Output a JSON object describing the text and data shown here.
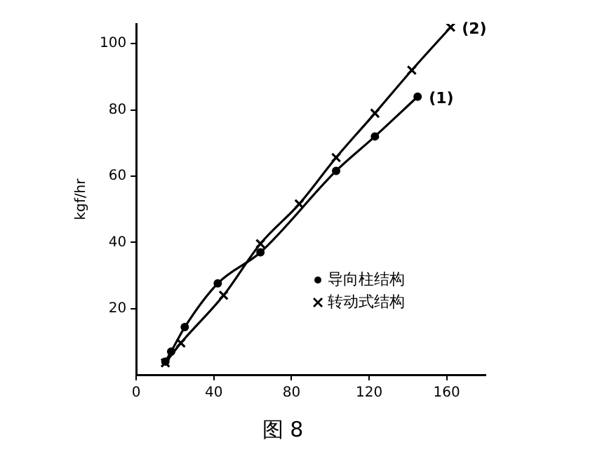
{
  "chart_data": {
    "type": "line",
    "ylabel": "kgf/hr",
    "series": [
      {
        "name": "导向柱结构",
        "color": "#000000",
        "marker": "circle",
        "x": [
          15,
          18,
          25,
          42,
          64,
          103,
          123,
          145
        ],
        "values": [
          4,
          7,
          14.4,
          27.6,
          37,
          61.6,
          72,
          84
        ]
      },
      {
        "name": "转动式结构",
        "color": "#000000",
        "marker": "cross",
        "x": [
          15,
          23,
          45,
          64,
          84,
          103,
          123,
          142,
          162
        ],
        "values": [
          3.6,
          9.6,
          24,
          39.6,
          51.6,
          65.6,
          79,
          92,
          105
        ]
      }
    ],
    "xlim": [
      0,
      180
    ],
    "xticks": [
      0,
      40,
      80,
      120,
      160
    ],
    "ylim": [
      0,
      106
    ],
    "yticks": [
      20,
      40,
      60,
      80,
      100
    ],
    "grid": false,
    "legend": "bottom right",
    "line_style": "solid",
    "annotations": [
      {
        "text": "(1)",
        "x": 145,
        "y": 84
      },
      {
        "text": "(2)",
        "x": 162,
        "y": 105
      },
      "图 8"
    ]
  }
}
